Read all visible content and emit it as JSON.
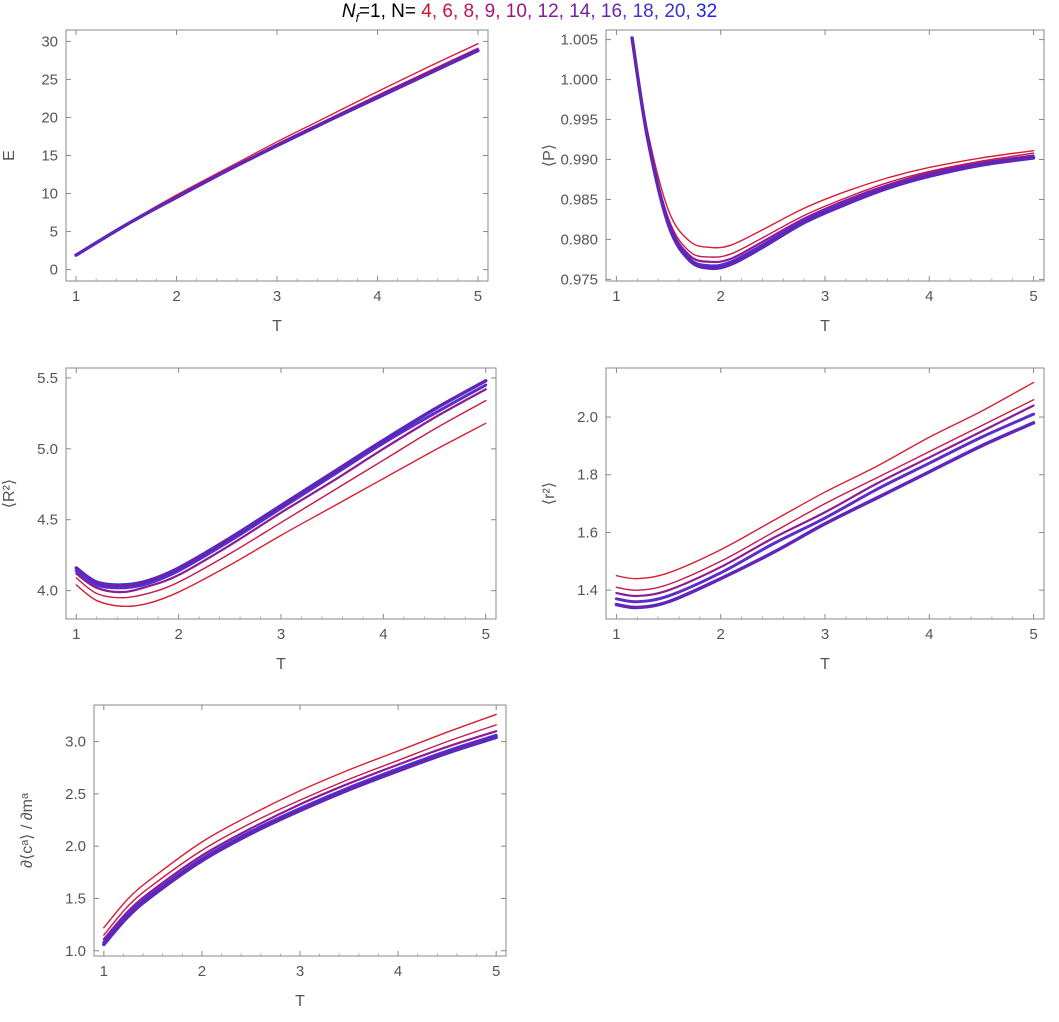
{
  "title": {
    "prefix": "N",
    "prefix_sub": "f",
    "prefix_rest": "=1, N= ",
    "n_labels": [
      "4",
      "6",
      "8",
      "9",
      "10",
      "12",
      "14",
      "16",
      "18",
      "20",
      "32"
    ],
    "n_colors": [
      "#d4102a",
      "#cc1240",
      "#bf1459",
      "#a8137a",
      "#9a1488",
      "#8a1898",
      "#7422a6",
      "#5f2bb5",
      "#4a2ec8",
      "#3530d8",
      "#2222e6"
    ]
  },
  "chart_data": [
    {
      "type": "line",
      "title": "",
      "xlabel": "T",
      "ylabel": "E",
      "xlim": [
        0.9,
        5.1
      ],
      "ylim": [
        -1.5,
        31.5
      ],
      "xticks": [
        1,
        2,
        3,
        4,
        5
      ],
      "yticks": [
        0,
        5,
        10,
        15,
        20,
        25,
        30
      ],
      "grid": false,
      "x": [
        1.0,
        1.5,
        2.0,
        2.5,
        3.0,
        3.5,
        4.0,
        4.5,
        5.0
      ],
      "series": [
        {
          "values": [
            1.9,
            6.0,
            9.8,
            13.3,
            16.8,
            20.1,
            23.4,
            26.6,
            29.7
          ]
        },
        {
          "values": [
            1.9,
            5.9,
            9.6,
            13.1,
            16.5,
            19.7,
            22.9,
            26.0,
            29.1
          ]
        },
        {
          "values": [
            1.9,
            5.9,
            9.5,
            13.0,
            16.4,
            19.6,
            22.7,
            25.8,
            28.9
          ]
        },
        {
          "values": [
            1.9,
            5.9,
            9.5,
            13.0,
            16.3,
            19.5,
            22.6,
            25.7,
            28.8
          ]
        }
      ]
    },
    {
      "type": "line",
      "title": "",
      "xlabel": "T",
      "ylabel": "⟨P⟩",
      "xlim": [
        0.9,
        5.1
      ],
      "ylim": [
        0.9748,
        1.0062
      ],
      "xticks": [
        1,
        2,
        3,
        4,
        5
      ],
      "yticks": [
        0.975,
        0.98,
        0.985,
        0.99,
        0.995,
        1.0,
        1.005
      ],
      "grid": false,
      "x": [
        1.15,
        1.3,
        1.5,
        1.7,
        1.9,
        2.1,
        2.4,
        2.8,
        3.2,
        3.6,
        4.0,
        4.5,
        5.0
      ],
      "series": [
        {
          "values": [
            1.0052,
            0.9935,
            0.9836,
            0.9798,
            0.979,
            0.9793,
            0.9812,
            0.9839,
            0.986,
            0.9877,
            0.989,
            0.9902,
            0.9911
          ]
        },
        {
          "values": [
            1.0052,
            0.993,
            0.9826,
            0.9785,
            0.9778,
            0.9782,
            0.9802,
            0.983,
            0.9852,
            0.9871,
            0.9885,
            0.9898,
            0.9908
          ]
        },
        {
          "values": [
            1.0052,
            0.9928,
            0.9822,
            0.978,
            0.9772,
            0.9776,
            0.9797,
            0.9826,
            0.9849,
            0.9868,
            0.9883,
            0.9896,
            0.9905
          ]
        },
        {
          "values": [
            1.0052,
            0.9927,
            0.982,
            0.9776,
            0.9767,
            0.9772,
            0.9793,
            0.9823,
            0.9846,
            0.9865,
            0.988,
            0.9894,
            0.9903
          ]
        },
        {
          "values": [
            1.0052,
            0.9926,
            0.9818,
            0.9774,
            0.9764,
            0.9769,
            0.979,
            0.9821,
            0.9844,
            0.9864,
            0.9879,
            0.9893,
            0.9902
          ]
        }
      ]
    },
    {
      "type": "line",
      "title": "",
      "xlabel": "T",
      "ylabel": "⟨R²⟩",
      "xlim": [
        0.9,
        5.1
      ],
      "ylim": [
        3.8,
        5.57
      ],
      "xticks": [
        1,
        2,
        3,
        4,
        5
      ],
      "yticks": [
        4.0,
        4.5,
        5.0,
        5.5
      ],
      "grid": false,
      "x": [
        1.0,
        1.2,
        1.45,
        1.7,
        2.0,
        2.5,
        3.0,
        3.5,
        4.0,
        4.5,
        5.0
      ],
      "series": [
        {
          "values": [
            4.04,
            3.93,
            3.89,
            3.91,
            3.99,
            4.18,
            4.39,
            4.59,
            4.79,
            4.99,
            5.18
          ]
        },
        {
          "values": [
            4.09,
            3.98,
            3.95,
            3.98,
            4.06,
            4.26,
            4.48,
            4.7,
            4.92,
            5.14,
            5.34
          ]
        },
        {
          "values": [
            4.12,
            4.02,
            3.99,
            4.03,
            4.11,
            4.32,
            4.55,
            4.77,
            5.0,
            5.22,
            5.42
          ]
        },
        {
          "values": [
            4.14,
            4.04,
            4.02,
            4.05,
            4.14,
            4.35,
            4.58,
            4.81,
            5.04,
            5.25,
            5.45
          ]
        },
        {
          "values": [
            4.16,
            4.06,
            4.04,
            4.07,
            4.16,
            4.37,
            4.6,
            4.83,
            5.06,
            5.28,
            5.48
          ]
        }
      ]
    },
    {
      "type": "line",
      "title": "",
      "xlabel": "T",
      "ylabel": "⟨r²⟩",
      "xlim": [
        0.9,
        5.1
      ],
      "ylim": [
        1.3,
        2.17
      ],
      "xticks": [
        1,
        2,
        3,
        4,
        5
      ],
      "yticks": [
        1.4,
        1.6,
        1.8,
        2.0
      ],
      "grid": false,
      "x": [
        1.0,
        1.2,
        1.5,
        2.0,
        2.5,
        3.0,
        3.5,
        4.0,
        4.5,
        5.0
      ],
      "series": [
        {
          "values": [
            1.45,
            1.44,
            1.46,
            1.54,
            1.64,
            1.74,
            1.83,
            1.93,
            2.02,
            2.12
          ]
        },
        {
          "values": [
            1.41,
            1.4,
            1.42,
            1.5,
            1.6,
            1.7,
            1.79,
            1.88,
            1.97,
            2.06
          ]
        },
        {
          "values": [
            1.39,
            1.38,
            1.4,
            1.48,
            1.58,
            1.67,
            1.77,
            1.86,
            1.95,
            2.04
          ]
        },
        {
          "values": [
            1.37,
            1.36,
            1.38,
            1.46,
            1.56,
            1.65,
            1.75,
            1.84,
            1.93,
            2.01
          ]
        },
        {
          "values": [
            1.35,
            1.34,
            1.36,
            1.44,
            1.53,
            1.63,
            1.72,
            1.81,
            1.9,
            1.98
          ]
        }
      ]
    },
    {
      "type": "line",
      "title": "",
      "xlabel": "T",
      "ylabel": "∂⟨cᵃ⟩ / ∂mᵃ",
      "xlim": [
        0.9,
        5.1
      ],
      "ylim": [
        0.95,
        3.35
      ],
      "xticks": [
        1,
        2,
        3,
        4,
        5
      ],
      "yticks": [
        1.0,
        1.5,
        2.0,
        2.5,
        3.0
      ],
      "grid": false,
      "x": [
        1.0,
        1.25,
        1.5,
        2.0,
        2.5,
        3.0,
        3.5,
        4.0,
        4.5,
        5.0
      ],
      "series": [
        {
          "values": [
            1.22,
            1.5,
            1.7,
            2.04,
            2.3,
            2.53,
            2.73,
            2.91,
            3.09,
            3.26
          ]
        },
        {
          "values": [
            1.15,
            1.43,
            1.63,
            1.96,
            2.22,
            2.44,
            2.64,
            2.82,
            3.0,
            3.16
          ]
        },
        {
          "values": [
            1.11,
            1.38,
            1.58,
            1.91,
            2.17,
            2.4,
            2.6,
            2.78,
            2.95,
            3.1
          ]
        },
        {
          "values": [
            1.08,
            1.35,
            1.55,
            1.88,
            2.14,
            2.36,
            2.56,
            2.74,
            2.91,
            3.06
          ]
        },
        {
          "values": [
            1.06,
            1.33,
            1.53,
            1.86,
            2.12,
            2.34,
            2.54,
            2.72,
            2.89,
            3.04
          ]
        }
      ]
    }
  ]
}
